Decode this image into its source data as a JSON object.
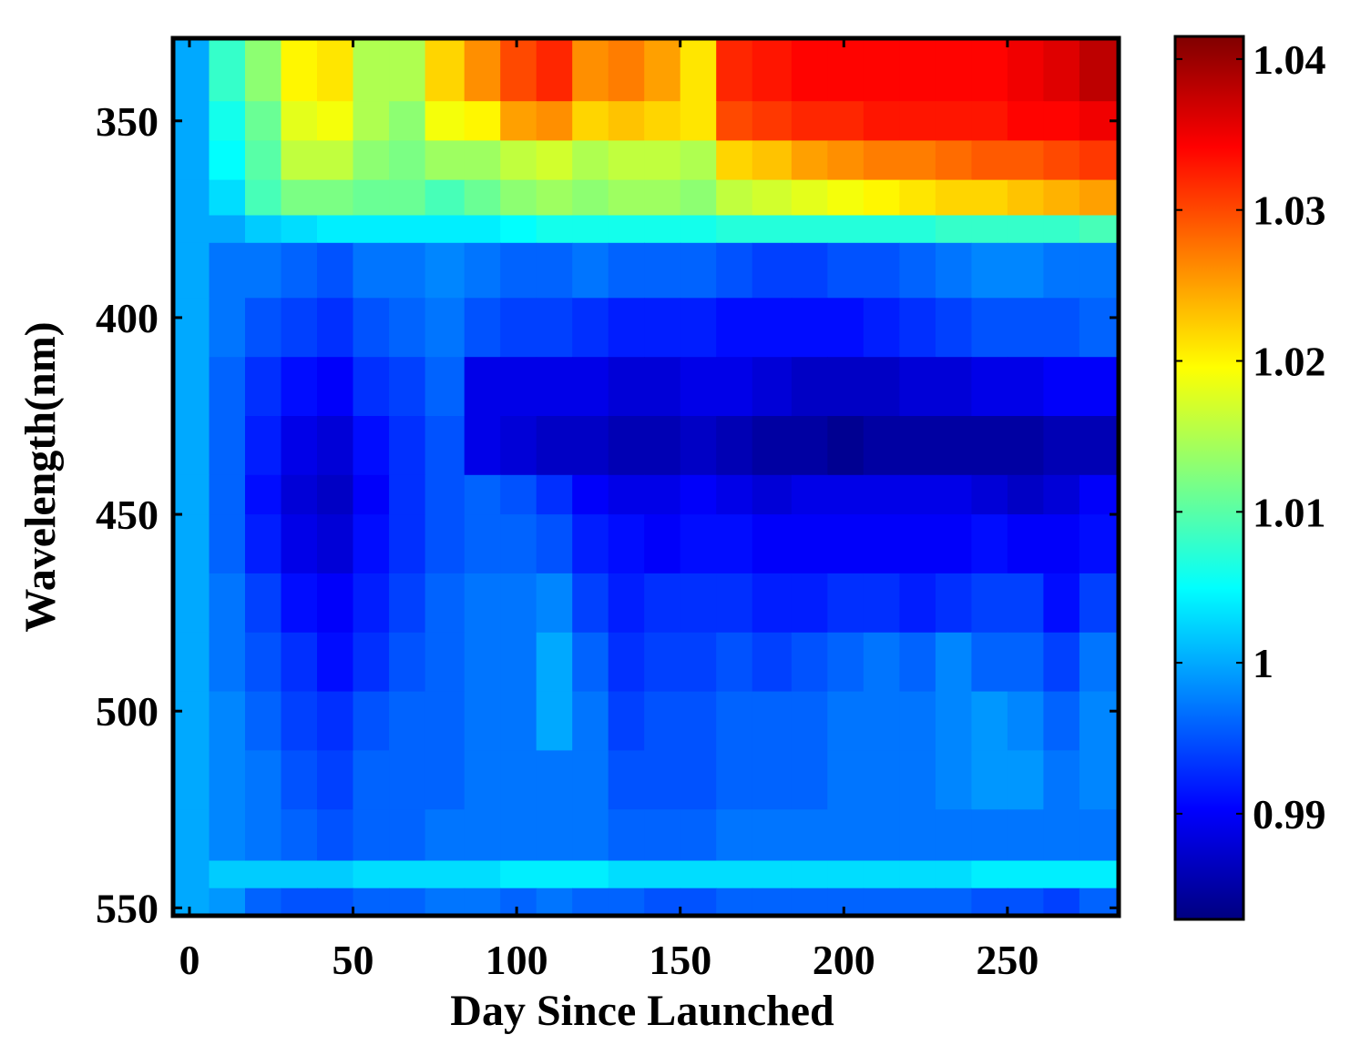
{
  "chart_data": {
    "type": "heatmap",
    "title": "",
    "xlabel": "Day Since Launched",
    "ylabel": "Wavelength(nm)",
    "xlim": [
      -5,
      284
    ],
    "ylim": [
      329,
      552
    ],
    "y_reversed": true,
    "x_ticks": [
      0,
      50,
      100,
      150,
      200,
      250
    ],
    "x_tick_labels": [
      "0",
      "50",
      "100",
      "150",
      "200",
      "250"
    ],
    "y_ticks": [
      350,
      400,
      450,
      500,
      550
    ],
    "y_tick_labels": [
      "350",
      "400",
      "450",
      "500",
      "550"
    ],
    "colormap": "jet",
    "colorbar": {
      "range": [
        0.983,
        1.0415
      ],
      "ticks": [
        0.99,
        1.0,
        1.01,
        1.02,
        1.03,
        1.04
      ],
      "tick_labels": [
        "0.99",
        "1",
        "1.01",
        "1.02",
        "1.03",
        "1.04"
      ]
    },
    "x_edges": [
      -5,
      6,
      17,
      28,
      39,
      50,
      61,
      72,
      84,
      95,
      106,
      117,
      128,
      139,
      150,
      161,
      172,
      184,
      195,
      206,
      217,
      228,
      239,
      250,
      261,
      272,
      284
    ],
    "y_edges": [
      329,
      345,
      355,
      365,
      374,
      381,
      395,
      410,
      425,
      440,
      450,
      465,
      480,
      495,
      510,
      525,
      538,
      545,
      552
    ],
    "z": [
      [
        1.0,
        1.008,
        1.013,
        1.02,
        1.021,
        1.015,
        1.015,
        1.022,
        1.026,
        1.03,
        1.032,
        1.026,
        1.027,
        1.025,
        1.021,
        1.032,
        1.033,
        1.034,
        1.034,
        1.034,
        1.034,
        1.034,
        1.034,
        1.035,
        1.036,
        1.038
      ],
      [
        1.0,
        1.006,
        1.011,
        1.018,
        1.019,
        1.015,
        1.013,
        1.019,
        1.02,
        1.025,
        1.026,
        1.022,
        1.023,
        1.022,
        1.021,
        1.03,
        1.031,
        1.032,
        1.032,
        1.033,
        1.033,
        1.033,
        1.033,
        1.034,
        1.034,
        1.035
      ],
      [
        1.0,
        1.005,
        1.01,
        1.016,
        1.016,
        1.013,
        1.012,
        1.014,
        1.014,
        1.016,
        1.017,
        1.015,
        1.016,
        1.016,
        1.015,
        1.022,
        1.023,
        1.025,
        1.026,
        1.027,
        1.027,
        1.028,
        1.029,
        1.029,
        1.03,
        1.031
      ],
      [
        1.0,
        1.003,
        1.009,
        1.012,
        1.012,
        1.011,
        1.011,
        1.009,
        1.011,
        1.013,
        1.014,
        1.013,
        1.014,
        1.014,
        1.013,
        1.016,
        1.017,
        1.018,
        1.019,
        1.02,
        1.021,
        1.022,
        1.022,
        1.023,
        1.024,
        1.025
      ],
      [
        1.0,
        1.0,
        1.002,
        1.003,
        1.004,
        1.004,
        1.004,
        1.004,
        1.004,
        1.005,
        1.006,
        1.006,
        1.006,
        1.006,
        1.006,
        1.007,
        1.007,
        1.007,
        1.007,
        1.007,
        1.007,
        1.008,
        1.008,
        1.008,
        1.008,
        1.009
      ],
      [
        1.0,
        0.997,
        0.997,
        0.996,
        0.995,
        0.997,
        0.997,
        0.998,
        0.997,
        0.996,
        0.996,
        0.997,
        0.996,
        0.996,
        0.996,
        0.995,
        0.994,
        0.994,
        0.995,
        0.995,
        0.996,
        0.997,
        0.998,
        0.998,
        0.997,
        0.997
      ],
      [
        1.0,
        0.997,
        0.995,
        0.994,
        0.993,
        0.995,
        0.996,
        0.997,
        0.995,
        0.994,
        0.994,
        0.993,
        0.992,
        0.992,
        0.992,
        0.991,
        0.991,
        0.991,
        0.991,
        0.992,
        0.993,
        0.994,
        0.995,
        0.995,
        0.995,
        0.996
      ],
      [
        1.0,
        0.996,
        0.993,
        0.991,
        0.99,
        0.993,
        0.994,
        0.996,
        0.989,
        0.989,
        0.989,
        0.989,
        0.988,
        0.988,
        0.989,
        0.989,
        0.988,
        0.987,
        0.987,
        0.987,
        0.988,
        0.988,
        0.989,
        0.989,
        0.99,
        0.99
      ],
      [
        1.0,
        0.996,
        0.992,
        0.989,
        0.988,
        0.991,
        0.993,
        0.995,
        0.989,
        0.988,
        0.987,
        0.987,
        0.986,
        0.986,
        0.987,
        0.986,
        0.985,
        0.985,
        0.984,
        0.985,
        0.985,
        0.985,
        0.985,
        0.985,
        0.986,
        0.986
      ],
      [
        1.0,
        0.996,
        0.991,
        0.988,
        0.987,
        0.99,
        0.993,
        0.995,
        0.996,
        0.995,
        0.993,
        0.99,
        0.989,
        0.989,
        0.99,
        0.989,
        0.988,
        0.989,
        0.989,
        0.989,
        0.989,
        0.989,
        0.988,
        0.987,
        0.988,
        0.99
      ],
      [
        1.0,
        0.996,
        0.992,
        0.989,
        0.988,
        0.991,
        0.993,
        0.995,
        0.996,
        0.996,
        0.995,
        0.992,
        0.991,
        0.99,
        0.991,
        0.991,
        0.99,
        0.99,
        0.99,
        0.99,
        0.99,
        0.99,
        0.991,
        0.99,
        0.99,
        0.991
      ],
      [
        1.0,
        0.997,
        0.994,
        0.991,
        0.99,
        0.992,
        0.994,
        0.996,
        0.997,
        0.997,
        0.998,
        0.994,
        0.992,
        0.993,
        0.993,
        0.993,
        0.992,
        0.992,
        0.993,
        0.993,
        0.992,
        0.993,
        0.994,
        0.994,
        0.991,
        0.994
      ],
      [
        1.0,
        0.997,
        0.995,
        0.993,
        0.991,
        0.993,
        0.995,
        0.996,
        0.997,
        0.997,
        1.0,
        0.996,
        0.993,
        0.994,
        0.994,
        0.995,
        0.994,
        0.995,
        0.996,
        0.997,
        0.996,
        0.998,
        0.996,
        0.996,
        0.994,
        0.997
      ],
      [
        1.0,
        0.998,
        0.996,
        0.994,
        0.993,
        0.995,
        0.996,
        0.996,
        0.997,
        0.997,
        1.0,
        0.997,
        0.994,
        0.995,
        0.995,
        0.996,
        0.996,
        0.996,
        0.997,
        0.997,
        0.997,
        0.998,
        0.999,
        0.998,
        0.996,
        0.998
      ],
      [
        1.0,
        0.998,
        0.997,
        0.995,
        0.994,
        0.996,
        0.996,
        0.996,
        0.997,
        0.997,
        0.997,
        0.997,
        0.995,
        0.995,
        0.995,
        0.996,
        0.996,
        0.996,
        0.997,
        0.997,
        0.997,
        0.998,
        0.999,
        0.999,
        0.997,
        0.998
      ],
      [
        1.0,
        0.998,
        0.997,
        0.996,
        0.995,
        0.996,
        0.996,
        0.997,
        0.997,
        0.997,
        0.997,
        0.997,
        0.996,
        0.996,
        0.996,
        0.997,
        0.997,
        0.997,
        0.997,
        0.997,
        0.997,
        0.997,
        0.997,
        0.997,
        0.997,
        0.997
      ],
      [
        1.0,
        1.002,
        1.002,
        1.002,
        1.002,
        1.003,
        1.003,
        1.003,
        1.003,
        1.004,
        1.004,
        1.004,
        1.003,
        1.003,
        1.003,
        1.003,
        1.003,
        1.003,
        1.003,
        1.003,
        1.003,
        1.003,
        1.004,
        1.004,
        1.004,
        1.004
      ],
      [
        1.0,
        0.999,
        0.996,
        0.995,
        0.995,
        0.996,
        0.996,
        0.997,
        0.997,
        0.996,
        0.997,
        0.996,
        0.996,
        0.995,
        0.995,
        0.996,
        0.996,
        0.996,
        0.996,
        0.996,
        0.996,
        0.996,
        0.995,
        0.995,
        0.994,
        0.996
      ]
    ]
  }
}
